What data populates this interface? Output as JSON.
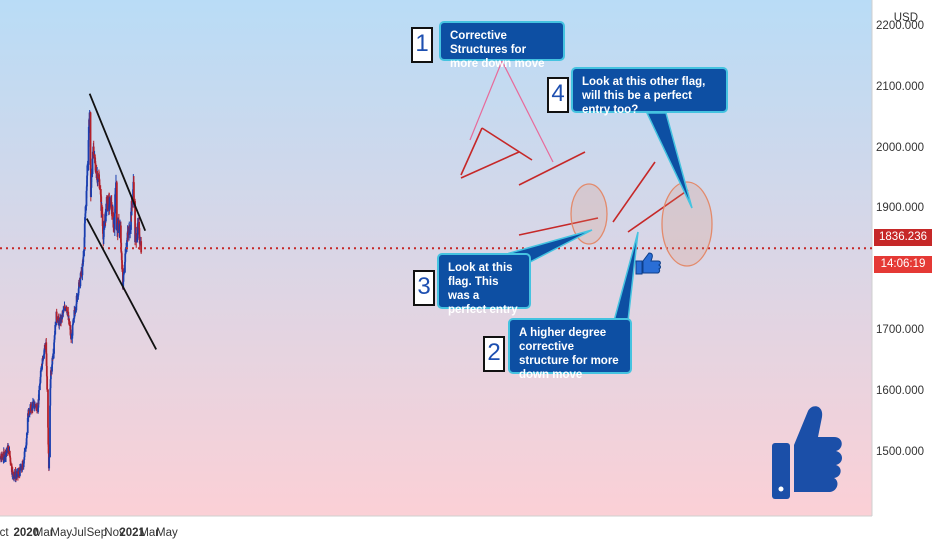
{
  "chart_data": {
    "type": "candlestick",
    "currency_label": "USD",
    "y_axis": {
      "ticks": [
        "2200.000",
        "2100.000",
        "2000.000",
        "1900.000",
        "1700.000",
        "1600.000",
        "1500.000"
      ],
      "range": [
        1400,
        2200
      ]
    },
    "x_axis": {
      "ticks": [
        {
          "label": "Oct",
          "bold": false
        },
        {
          "label": "2020",
          "bold": true
        },
        {
          "label": "Mar",
          "bold": false
        },
        {
          "label": "May",
          "bold": false
        },
        {
          "label": "Jul",
          "bold": false
        },
        {
          "label": "Sep",
          "bold": false
        },
        {
          "label": "Nov",
          "bold": false
        },
        {
          "label": "2021",
          "bold": true
        },
        {
          "label": "Mar",
          "bold": false
        },
        {
          "label": "May",
          "bold": false
        }
      ]
    },
    "current_price": "1836.236",
    "countdown": "14:06:19",
    "price_path": [
      [
        "2019-09-10",
        1505
      ],
      [
        "2019-09-20",
        1510
      ],
      [
        "2019-10-01",
        1490
      ],
      [
        "2019-10-15",
        1495
      ],
      [
        "2019-11-01",
        1508
      ],
      [
        "2019-11-15",
        1465
      ],
      [
        "2019-12-01",
        1462
      ],
      [
        "2019-12-20",
        1478
      ],
      [
        "2020-01-01",
        1520
      ],
      [
        "2020-01-08",
        1565
      ],
      [
        "2020-01-25",
        1580
      ],
      [
        "2020-02-10",
        1575
      ],
      [
        "2020-02-24",
        1650
      ],
      [
        "2020-03-09",
        1685
      ],
      [
        "2020-03-19",
        1475
      ],
      [
        "2020-03-25",
        1625
      ],
      [
        "2020-04-14",
        1725
      ],
      [
        "2020-04-25",
        1712
      ],
      [
        "2020-05-18",
        1745
      ],
      [
        "2020-06-05",
        1685
      ],
      [
        "2020-06-15",
        1730
      ],
      [
        "2020-07-01",
        1775
      ],
      [
        "2020-07-15",
        1810
      ],
      [
        "2020-07-27",
        1935
      ],
      [
        "2020-08-07",
        2060
      ],
      [
        "2020-08-11",
        1925
      ],
      [
        "2020-08-18",
        2000
      ],
      [
        "2020-08-28",
        1965
      ],
      [
        "2020-09-10",
        1945
      ],
      [
        "2020-09-24",
        1855
      ],
      [
        "2020-10-05",
        1910
      ],
      [
        "2020-10-20",
        1910
      ],
      [
        "2020-10-30",
        1870
      ],
      [
        "2020-11-06",
        1950
      ],
      [
        "2020-11-09",
        1870
      ],
      [
        "2020-11-20",
        1870
      ],
      [
        "2020-11-30",
        1775
      ],
      [
        "2020-12-10",
        1840
      ],
      [
        "2020-12-25",
        1875
      ],
      [
        "2021-01-06",
        1945
      ],
      [
        "2021-01-11",
        1850
      ],
      [
        "2021-01-22",
        1870
      ],
      [
        "2021-02-01",
        1836
      ]
    ],
    "trendlines": [
      {
        "from": [
          "2020-08-07",
          2090
        ],
        "to": [
          "2021-02-15",
          1865
        ]
      },
      {
        "from": [
          "2020-07-28",
          1885
        ],
        "to": [
          "2021-03-25",
          1670
        ]
      }
    ]
  },
  "annotations": {
    "n1": {
      "number": "1",
      "text": "Corrective Structures for more down move"
    },
    "n2": {
      "number": "2",
      "text": "A higher degree corrective structure for more down move"
    },
    "n3": {
      "number": "3",
      "text": "Look at this flag. This was a perfect entry"
    },
    "n4": {
      "number": "4",
      "text": "Look at this other flag, will this be a perfect entry too?"
    }
  },
  "colors": {
    "bg_top": "#b9dcf6",
    "bg_bottom": "#fbd0d6",
    "bull": "#1a3fb0",
    "bear": "#b3202a",
    "callout_bg": "#0d4fa3",
    "callout_border": "#45c3e0",
    "price_line": "#c62828",
    "pattern": "#c62828",
    "trendline": "#111111",
    "ellipse": "#e38a6b"
  },
  "icons": [
    "thumbs-up-icon",
    "small-thumbs-up-icon"
  ]
}
